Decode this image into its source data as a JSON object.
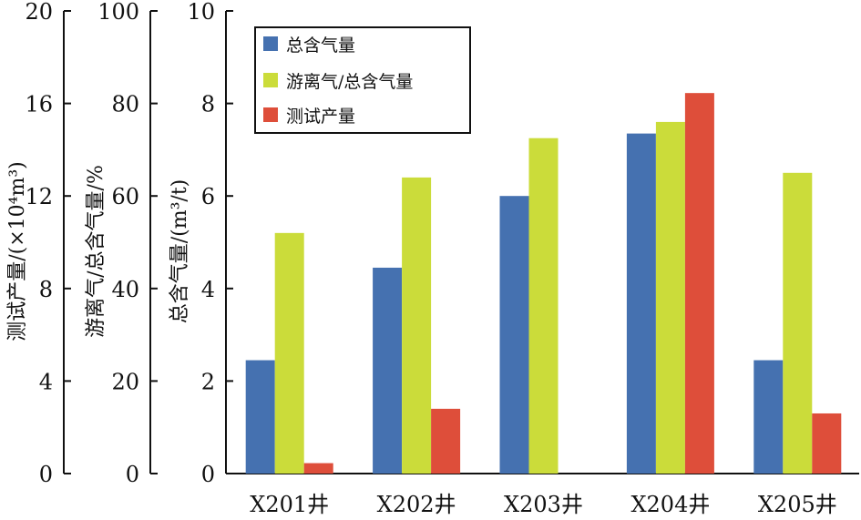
{
  "chart_data": {
    "type": "bar",
    "categories": [
      "X201井",
      "X202井",
      "X203井",
      "X204井",
      "X205井"
    ],
    "series": [
      {
        "name": "总含气量",
        "axis": "gas",
        "color": "#4571b0",
        "values": [
          2.45,
          4.45,
          6.0,
          7.35,
          2.45
        ]
      },
      {
        "name": "游离气/总含气量",
        "axis": "ratio",
        "color": "#cbdc3a",
        "values": [
          52,
          64,
          72.5,
          76,
          65
        ]
      },
      {
        "name": "测试产量",
        "axis": "prod",
        "color": "#de4e3a",
        "values": [
          0.45,
          2.8,
          null,
          16.45,
          2.6
        ]
      }
    ],
    "axes": {
      "gas": {
        "label": "总含气量/(m³/t)",
        "ylim": [
          0,
          10
        ],
        "ticks": [
          "0",
          "2",
          "4",
          "6",
          "8",
          "10"
        ]
      },
      "ratio": {
        "label": "游离气/总含气量/%",
        "ylim": [
          0,
          100
        ],
        "ticks": [
          "0",
          "20",
          "40",
          "60",
          "80",
          "100"
        ]
      },
      "prod": {
        "label": "测试产量/(×10⁴m³)",
        "ylim": [
          0,
          20
        ],
        "ticks": [
          "0",
          "4",
          "8",
          "12",
          "16",
          "20"
        ]
      }
    },
    "legend_position": "top-left",
    "grid": false
  }
}
